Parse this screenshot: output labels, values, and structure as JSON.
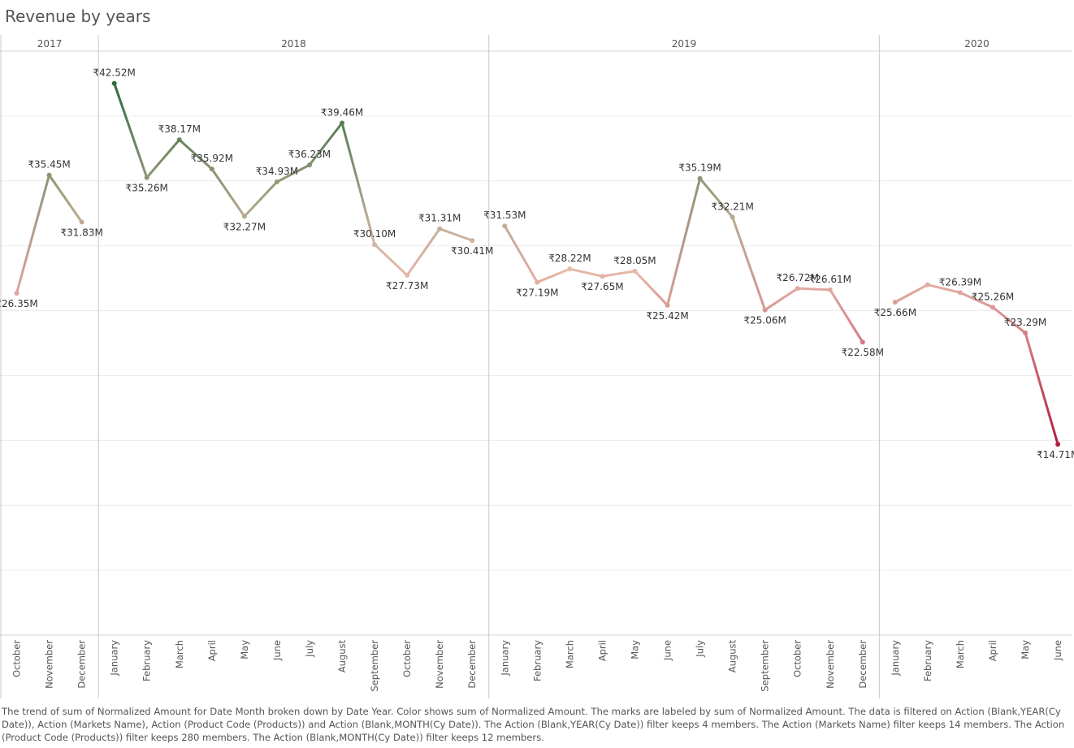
{
  "title": "Revenue by years",
  "caption": "The trend of sum of Normalized Amount for Date Month broken down by Date Year.  Color shows sum of Normalized Amount.  The marks are labeled by sum of Normalized Amount. The data is filtered on Action (Blank,YEAR(Cy Date)), Action (Markets Name), Action (Product Code (Products)) and Action (Blank,MONTH(Cy Date)). The Action (Blank,YEAR(Cy Date)) filter keeps 4 members. The Action (Markets Name) filter keeps 14 members. The Action (Product Code (Products)) filter keeps 280 members. The Action (Blank,MONTH(Cy Date)) filter keeps 12 members.",
  "chart_data": {
    "type": "line",
    "title": "Revenue by years",
    "xlabel": "",
    "ylabel": "",
    "ylim": [
      0,
      45
    ],
    "grid": true,
    "color_scale": {
      "low": "#b31d43",
      "mid": "#e8bfae",
      "high": "#2e6b3a"
    },
    "panels": [
      {
        "year": "2017",
        "months": [
          "October",
          "November",
          "December"
        ],
        "values": [
          26.35,
          35.45,
          31.83
        ],
        "labels": [
          "₹26.35M",
          "₹35.45M",
          "₹31.83M"
        ]
      },
      {
        "year": "2018",
        "months": [
          "January",
          "February",
          "March",
          "April",
          "May",
          "June",
          "July",
          "August",
          "September",
          "October",
          "November",
          "December"
        ],
        "values": [
          42.52,
          35.26,
          38.17,
          35.92,
          32.27,
          34.93,
          36.23,
          39.46,
          30.1,
          27.73,
          31.31,
          30.41
        ],
        "labels": [
          "₹42.52M",
          "₹35.26M",
          "₹38.17M",
          "₹35.92M",
          "₹32.27M",
          "₹34.93M",
          "₹36.23M",
          "₹39.46M",
          "₹30.10M",
          "₹27.73M",
          "₹31.31M",
          "₹30.41M"
        ]
      },
      {
        "year": "2019",
        "months": [
          "January",
          "February",
          "March",
          "April",
          "May",
          "June",
          "July",
          "August",
          "September",
          "October",
          "November",
          "December"
        ],
        "values": [
          31.53,
          27.19,
          28.22,
          27.65,
          28.05,
          25.42,
          35.19,
          32.21,
          25.06,
          26.72,
          26.61,
          22.58
        ],
        "labels": [
          "₹31.53M",
          "₹27.19M",
          "₹28.22M",
          "₹27.65M",
          "₹28.05M",
          "₹25.42M",
          "₹35.19M",
          "₹32.21M",
          "₹25.06M",
          "₹26.72M",
          "₹26.61M",
          "₹22.58M"
        ]
      },
      {
        "year": "2020",
        "months": [
          "January",
          "February",
          "March",
          "April",
          "May",
          "June"
        ],
        "values": [
          25.66,
          27.0,
          26.39,
          25.26,
          23.29,
          14.71
        ],
        "labels": [
          "₹25.66M",
          "",
          "₹26.39M",
          "₹25.26M",
          "₹23.29M",
          "₹14.71M"
        ]
      }
    ]
  }
}
